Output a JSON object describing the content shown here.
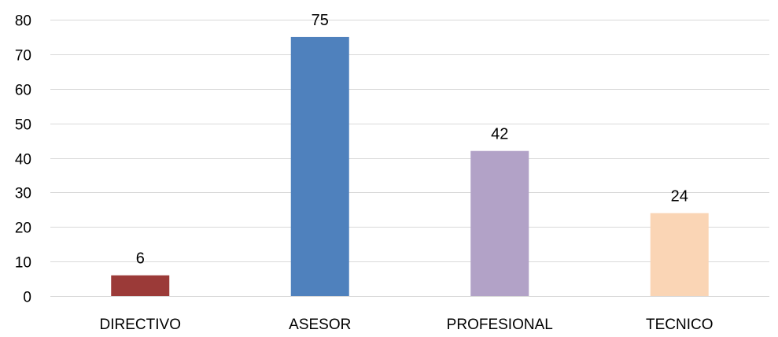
{
  "chart_data": {
    "type": "bar",
    "title": "",
    "xlabel": "",
    "ylabel": "",
    "categories": [
      "DIRECTIVO",
      "ASESOR",
      "PROFESIONAL",
      "TECNICO"
    ],
    "values": [
      6,
      75,
      42,
      24
    ],
    "colors": [
      "#9b3a38",
      "#4f81bd",
      "#b2a2c7",
      "#fad5b5"
    ],
    "ylim": [
      0,
      80
    ],
    "yticks": [
      0,
      10,
      20,
      30,
      40,
      50,
      60,
      70,
      80
    ],
    "data_labels": [
      "6",
      "75",
      "42",
      "24"
    ],
    "grid": true,
    "legend": "none"
  }
}
